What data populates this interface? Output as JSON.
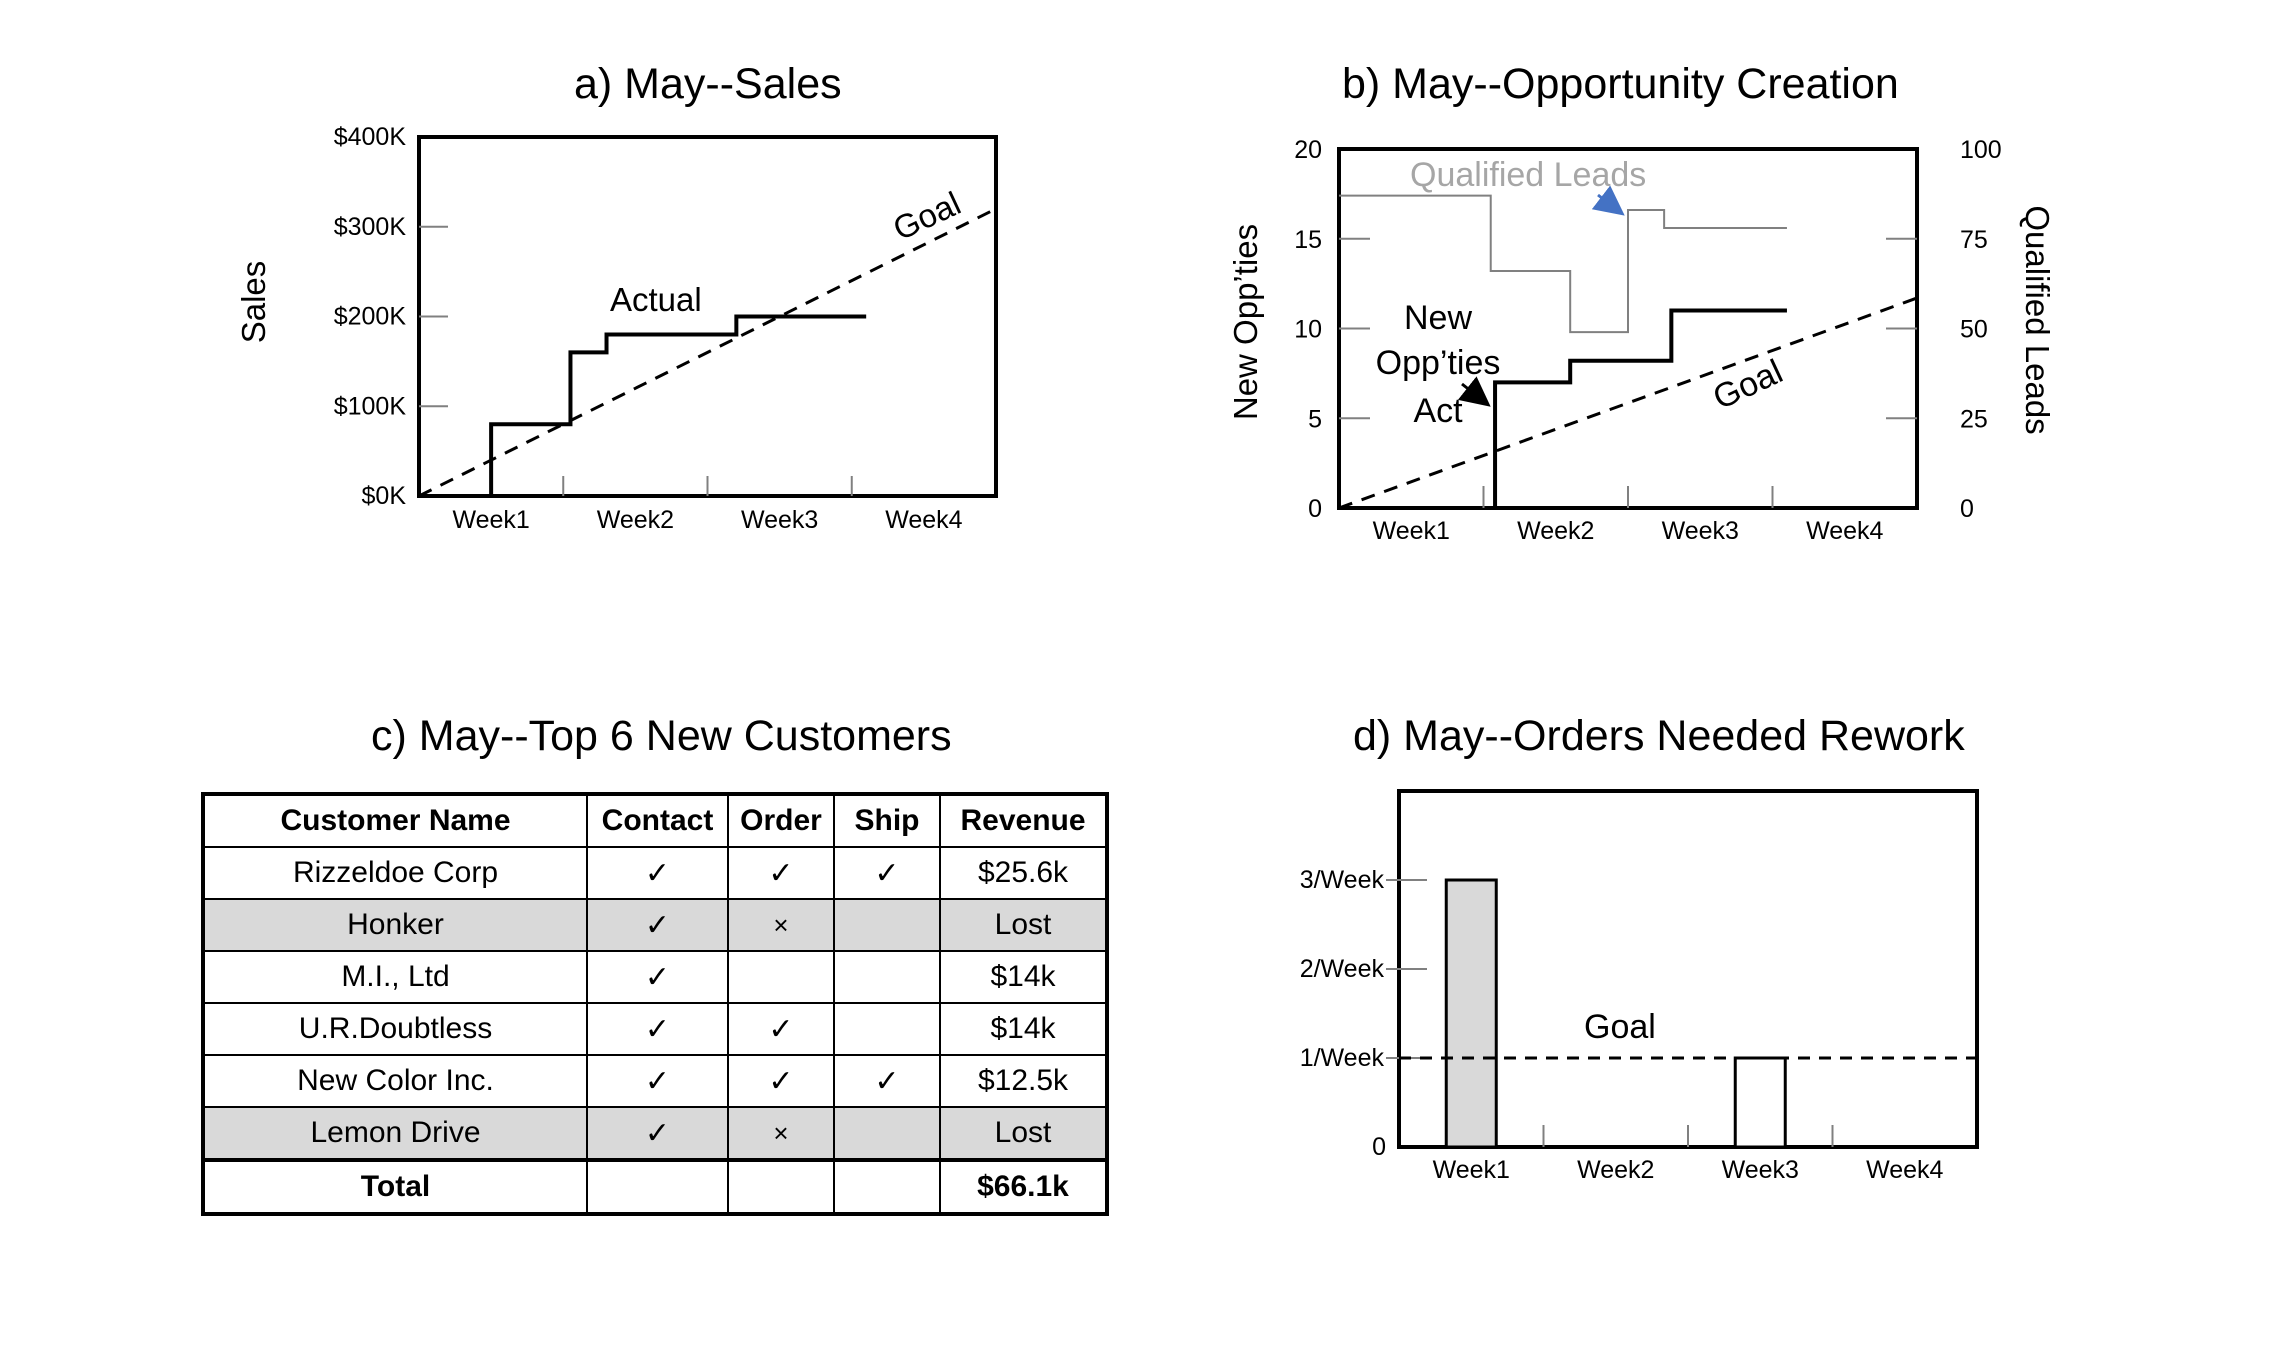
{
  "charts": {
    "sales": {
      "title": "a) May--Sales"
    },
    "opportunity": {
      "title": "b) May--Opportunity Creation"
    },
    "customers": {
      "title": "c) May--Top 6 New Customers"
    },
    "rework": {
      "title": "d) May--Orders Needed Rework"
    }
  },
  "chart_data": [
    {
      "type": "line",
      "title": "a) May--Sales",
      "xlabel": "",
      "ylabel": "Sales",
      "categories": [
        "Week1",
        "Week2",
        "Week3",
        "Week4"
      ],
      "y_ticks": [
        "$0K",
        "$100K",
        "$200K",
        "$300K",
        "$400K"
      ],
      "ylim": [
        0,
        400
      ],
      "xlim": [
        0,
        4
      ],
      "series": [
        {
          "name": "Actual",
          "points": [
            [
              0.5,
              0
            ],
            [
              0.5,
              80
            ],
            [
              1.05,
              80
            ],
            [
              1.05,
              160
            ],
            [
              1.3,
              160
            ],
            [
              1.3,
              180
            ],
            [
              2.2,
              180
            ],
            [
              2.2,
              200
            ],
            [
              3.1,
              200
            ]
          ]
        },
        {
          "name": "Goal",
          "points": [
            [
              0,
              0
            ],
            [
              4,
              320
            ]
          ],
          "dashed": true
        }
      ],
      "annotations": [
        "Actual",
        "Goal"
      ],
      "grid": false
    },
    {
      "type": "line",
      "title": "b) May--Opportunity Creation",
      "xlabel": "",
      "ylabel": "New Opp’ties",
      "y2label": "Qualified Leads",
      "categories": [
        "Week1",
        "Week2",
        "Week3",
        "Week4"
      ],
      "y_ticks": [
        "0",
        "5",
        "10",
        "15",
        "20"
      ],
      "y2_ticks": [
        "0",
        "25",
        "50",
        "75",
        "100"
      ],
      "ylim": [
        0,
        20
      ],
      "y2lim": [
        0,
        100
      ],
      "xlim": [
        0,
        4
      ],
      "series": [
        {
          "name": "Qualified Leads",
          "axis": "right",
          "color": "#808080",
          "points": [
            [
              0,
              87
            ],
            [
              1.05,
              87
            ],
            [
              1.05,
              66
            ],
            [
              1.6,
              66
            ],
            [
              1.6,
              49
            ],
            [
              2.0,
              49
            ],
            [
              2.0,
              83
            ],
            [
              2.25,
              83
            ],
            [
              2.25,
              78
            ],
            [
              3.1,
              78
            ]
          ]
        },
        {
          "name": "New Opp’ties Act",
          "axis": "left",
          "color": "#000000",
          "points": [
            [
              1.08,
              0
            ],
            [
              1.08,
              7
            ],
            [
              1.6,
              7
            ],
            [
              1.6,
              8.2
            ],
            [
              2.3,
              8.2
            ],
            [
              2.3,
              11
            ],
            [
              3.1,
              11
            ]
          ]
        },
        {
          "name": "Goal",
          "axis": "left",
          "dashed": true,
          "points": [
            [
              0,
              0
            ],
            [
              4,
              11.7
            ]
          ]
        }
      ],
      "annotations": [
        "Qualified Leads",
        "New",
        "Opp’ties",
        "Act",
        "Goal"
      ],
      "grid": false
    },
    {
      "type": "table",
      "title": "c) May--Top 6 New Customers",
      "columns": [
        "Customer Name",
        "Contact",
        "Order",
        "Ship",
        "Revenue"
      ],
      "rows": [
        [
          "Rizzeldoe Corp",
          "✓",
          "✓",
          "✓",
          "$25.6k"
        ],
        [
          "Honker",
          "✓",
          "×",
          "",
          "Lost"
        ],
        [
          "M.I., Ltd",
          "✓",
          "",
          "",
          "$14k"
        ],
        [
          "U.R.Doubtless",
          "✓",
          "✓",
          "",
          "$14k"
        ],
        [
          "New Color Inc.",
          "✓",
          "✓",
          "✓",
          "$12.5k"
        ],
        [
          "Lemon Drive",
          "✓",
          "×",
          "",
          "Lost"
        ]
      ],
      "total": [
        "Total",
        "",
        "",
        "",
        "$66.1k"
      ]
    },
    {
      "type": "bar",
      "title": "d) May--Orders Needed Rework",
      "xlabel": "",
      "ylabel": "",
      "categories": [
        "Week1",
        "Week2",
        "Week3",
        "Week4"
      ],
      "values": [
        3,
        0,
        1,
        0
      ],
      "bar_fills": [
        "#d9d9d9",
        "#d9d9d9",
        "#ffffff",
        "#d9d9d9"
      ],
      "y_ticks": [
        "0",
        "1/Week",
        "2/Week",
        "3/Week"
      ],
      "ylim": [
        0,
        4
      ],
      "goal": 1,
      "annotations": [
        "Goal"
      ],
      "grid": false
    }
  ],
  "colors": {
    "lead_line": "#808080",
    "arrow_blue": "#4472c4",
    "lost_row": "#d9d9d9",
    "bar_fill": "#d9d9d9"
  },
  "icons": {
    "check": "check-icon",
    "cross": "cross-icon"
  }
}
